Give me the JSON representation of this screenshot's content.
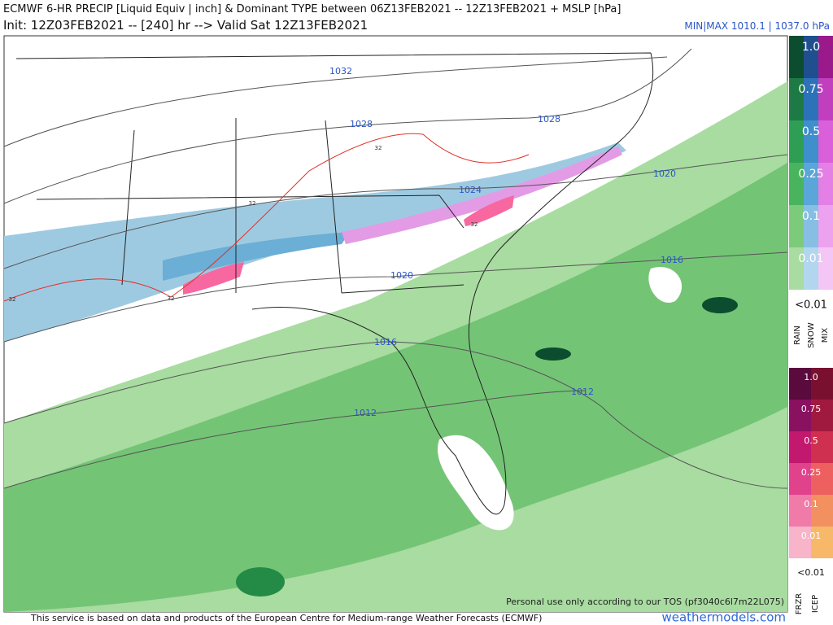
{
  "header": {
    "title": "ECMWF 6-HR PRECIP [Liquid Equiv | inch] & Dominant TYPE between 06Z13FEB2021 -- 12Z13FEB2021 + MSLP [hPa]",
    "subtitle": "Init: 12Z03FEB2021 -- [240] hr --> Valid Sat 12Z13FEB2021",
    "minmax": "MIN|MAX 1010.1 | 1037.0 hPa"
  },
  "isobar_labels": [
    "1032",
    "1028",
    "1028",
    "1024",
    "1020",
    "1020",
    "1016",
    "1016",
    "1012",
    "1012"
  ],
  "freezing_labels": [
    "32",
    "32",
    "32",
    "32",
    "32"
  ],
  "legend_upper": {
    "ticks": [
      "1.0",
      "0.75",
      "0.5",
      "0.25",
      "0.1",
      "0.01"
    ],
    "below": "<0.01",
    "types": [
      "RAIN",
      "SNOW",
      "MIX"
    ]
  },
  "legend_lower": {
    "ticks": [
      "1.0",
      "0.75",
      "0.5",
      "0.25",
      "0.1",
      "0.01"
    ],
    "below": "<0.01",
    "types": [
      "FRZR",
      "ICEP"
    ]
  },
  "footer": {
    "notice": "Personal use only according to our TOS (pf3040c6l7m22L075)",
    "credit": "This service is based on data and products of the European Centre for Medium-range Weather Forecasts (ECMWF)",
    "site": "weathermodels.com"
  }
}
